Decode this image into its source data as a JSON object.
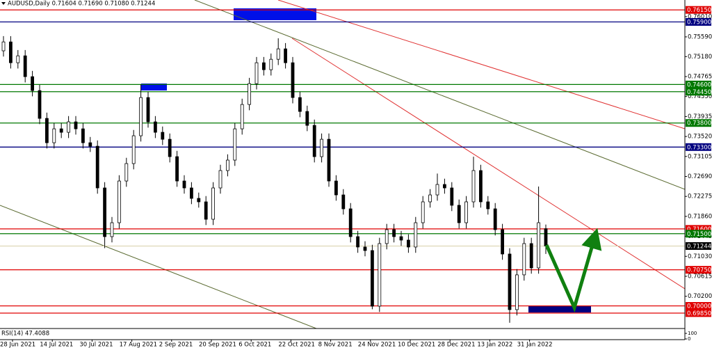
{
  "chart_data": {
    "type": "candlestick",
    "header": "AUDUSD,Daily  0.71604 0.71690 0.71080 0.71244",
    "ylim": [
      0.6953,
      0.7624
    ],
    "yticks": [
      {
        "value": 0.7601,
        "label": "0.76010"
      },
      {
        "value": 0.7559,
        "label": "0.75590"
      },
      {
        "value": 0.7518,
        "label": "0.75180"
      },
      {
        "value": 0.74765,
        "label": "0.74765"
      },
      {
        "value": 0.7435,
        "label": "0.74350"
      },
      {
        "value": 0.73935,
        "label": "0.73935"
      },
      {
        "value": 0.7352,
        "label": "0.73520"
      },
      {
        "value": 0.73105,
        "label": "0.73105"
      },
      {
        "value": 0.7269,
        "label": "0.72690"
      },
      {
        "value": 0.72275,
        "label": "0.72275"
      },
      {
        "value": 0.7186,
        "label": "0.71860"
      },
      {
        "value": 0.71445,
        "label": "0.71445"
      },
      {
        "value": 0.7103,
        "label": "0.71030"
      },
      {
        "value": 0.70615,
        "label": "0.70615"
      },
      {
        "value": 0.702,
        "label": "0.70200"
      }
    ],
    "levels": [
      {
        "value": 0.7615,
        "label": "0.76150",
        "color": "#e00000"
      },
      {
        "value": 0.759,
        "label": "0.75900",
        "color": "#000080"
      },
      {
        "value": 0.746,
        "label": "0.74600",
        "color": "#007800"
      },
      {
        "value": 0.7445,
        "label": "0.74450",
        "color": "#007800"
      },
      {
        "value": 0.738,
        "label": "0.73800",
        "color": "#007800"
      },
      {
        "value": 0.733,
        "label": "0.73300",
        "color": "#000080"
      },
      {
        "value": 0.716,
        "label": "0.71600",
        "color": "#e00000"
      },
      {
        "value": 0.715,
        "label": "0.71500",
        "color": "#007800"
      },
      {
        "value": 0.71244,
        "label": "0.71244",
        "color": "#000000"
      },
      {
        "value": 0.7075,
        "label": "0.70750",
        "color": "#e00000"
      },
      {
        "value": 0.7,
        "label": "0.70000",
        "color": "#e00000"
      },
      {
        "value": 0.6985,
        "label": "0.69850",
        "color": "#e00000"
      }
    ],
    "open": [
      0.753,
      0.75485,
      0.75052,
      0.75196,
      0.74763,
      0.74474,
      0.73896,
      0.7339,
      0.73679,
      0.73607,
      0.73824,
      0.73679,
      0.7339,
      0.73318,
      0.72451,
      0.71439,
      0.71728,
      0.72595,
      0.72957,
      0.73535,
      0.74329,
      0.73824,
      0.73607,
      0.73462,
      0.73101,
      0.72595,
      0.72451,
      0.72234,
      0.72162,
      0.718,
      0.72451,
      0.72812,
      0.73029,
      0.73679,
      0.74185,
      0.74618,
      0.75052,
      0.74907,
      0.75124,
      0.75341,
      0.75052,
      0.74329,
      0.7404,
      0.73751,
      0.73101,
      0.73462,
      0.72595,
      0.72306,
      0.72017,
      0.71439,
      0.71223,
      0.7115,
      0.69994,
      0.71295,
      0.71584,
      0.71439,
      0.71367,
      0.71223,
      0.71728,
      0.72162,
      0.72306,
      0.72523,
      0.72451,
      0.7209,
      0.71728,
      0.72162,
      0.72812,
      0.72162,
      0.72017,
      0.71584,
      0.71078,
      0.69922,
      0.70645,
      0.71295,
      0.70789,
      0.71604
    ],
    "high": [
      0.75605,
      0.75605,
      0.75316,
      0.75316,
      0.74883,
      0.74594,
      0.74016,
      0.73799,
      0.73799,
      0.73944,
      0.73944,
      0.73799,
      0.7351,
      0.73438,
      0.72571,
      0.71848,
      0.72715,
      0.73077,
      0.73655,
      0.746,
      0.74449,
      0.73944,
      0.73727,
      0.73582,
      0.73221,
      0.72715,
      0.72571,
      0.72354,
      0.72282,
      0.72571,
      0.72932,
      0.73149,
      0.73799,
      0.74305,
      0.74738,
      0.75172,
      0.75172,
      0.75244,
      0.7556,
      0.75461,
      0.75172,
      0.74449,
      0.7416,
      0.73871,
      0.73582,
      0.73582,
      0.72715,
      0.72426,
      0.72137,
      0.71559,
      0.71343,
      0.7127,
      0.71415,
      0.71704,
      0.71704,
      0.71559,
      0.71487,
      0.71848,
      0.72282,
      0.72426,
      0.7275,
      0.72643,
      0.72571,
      0.7221,
      0.72282,
      0.731,
      0.72932,
      0.72282,
      0.72137,
      0.71704,
      0.71198,
      0.70765,
      0.71415,
      0.71415,
      0.7248,
      0.7169
    ],
    "low": [
      0.7518,
      0.74932,
      0.74932,
      0.74643,
      0.74354,
      0.73776,
      0.7327,
      0.7327,
      0.73487,
      0.73487,
      0.73559,
      0.7327,
      0.73198,
      0.72331,
      0.712,
      0.71319,
      0.71608,
      0.72475,
      0.72837,
      0.73415,
      0.73704,
      0.73487,
      0.73342,
      0.72981,
      0.72475,
      0.72331,
      0.72114,
      0.72042,
      0.7168,
      0.7168,
      0.72331,
      0.72692,
      0.72909,
      0.73559,
      0.74065,
      0.74498,
      0.74787,
      0.74787,
      0.75004,
      0.74932,
      0.74209,
      0.7392,
      0.73631,
      0.72981,
      0.72981,
      0.72475,
      0.72186,
      0.71897,
      0.71319,
      0.71103,
      0.7103,
      0.6993,
      0.69874,
      0.71175,
      0.71319,
      0.71247,
      0.71103,
      0.71103,
      0.71608,
      0.72042,
      0.72186,
      0.72331,
      0.7197,
      0.71608,
      0.71608,
      0.72042,
      0.72042,
      0.71897,
      0.71464,
      0.70958,
      0.6965,
      0.69802,
      0.70525,
      0.70669,
      0.70669,
      0.7108
    ],
    "close": [
      0.75485,
      0.75052,
      0.75196,
      0.74763,
      0.74474,
      0.73896,
      0.7339,
      0.73679,
      0.73607,
      0.73824,
      0.73679,
      0.7339,
      0.73318,
      0.72451,
      0.71439,
      0.71728,
      0.72595,
      0.72957,
      0.73535,
      0.74329,
      0.73824,
      0.73607,
      0.73462,
      0.73101,
      0.72595,
      0.72451,
      0.72234,
      0.72162,
      0.718,
      0.72451,
      0.72812,
      0.73029,
      0.73679,
      0.74185,
      0.74618,
      0.75052,
      0.74907,
      0.75124,
      0.75341,
      0.75052,
      0.74329,
      0.7404,
      0.73751,
      0.73101,
      0.73462,
      0.72595,
      0.72306,
      0.72017,
      0.71439,
      0.71223,
      0.7115,
      0.69994,
      0.71295,
      0.71584,
      0.71439,
      0.71367,
      0.71223,
      0.71728,
      0.72162,
      0.72306,
      0.72523,
      0.72451,
      0.7209,
      0.71728,
      0.72162,
      0.72812,
      0.72162,
      0.72017,
      0.71584,
      0.71078,
      0.69922,
      0.70645,
      0.71295,
      0.70789,
      0.71728,
      0.71244
    ],
    "date_labels": [
      "28 Jun 2021",
      "14 Jul 2021",
      "30 Jul 2021",
      "17 Aug 2021",
      "2 Sep 2021",
      "20 Sep 2021",
      "6 Oct 2021",
      "22 Oct 2021",
      "8 Nov 2021",
      "24 Nov 2021",
      "10 Dec 2021",
      "28 Dec 2021",
      "13 Jan 2022",
      "31 Jan 2022"
    ],
    "rsi_label": "RSI(14) 47.4088",
    "rsi_ylim": [
      0,
      100
    ],
    "rsi_yticks": [
      100,
      0
    ]
  }
}
